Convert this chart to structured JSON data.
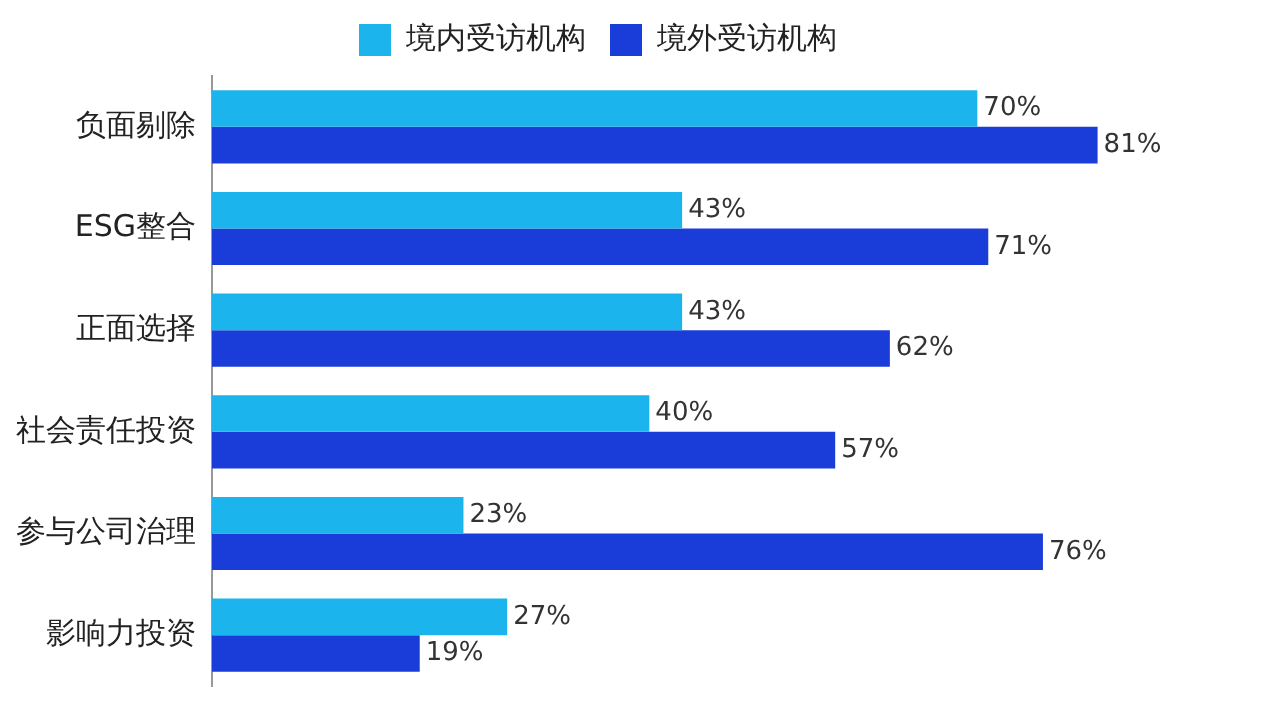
{
  "chart_data": {
    "type": "bar",
    "orientation": "horizontal",
    "legend": "top",
    "grid": false,
    "categories": [
      "负面剔除",
      "ESG整合",
      "正面选择",
      "社会责任投资",
      "参与公司治理",
      "影响力投资"
    ],
    "series": [
      {
        "name": "境内受访机构",
        "color": "#1cb4ec",
        "values": [
          70,
          43,
          43,
          40,
          23,
          27
        ],
        "value_labels": [
          "70%",
          "43%",
          "43%",
          "40%",
          "23%",
          "27%"
        ]
      },
      {
        "name": "境外受访机构",
        "color": "#1a3cd8",
        "values": [
          81,
          71,
          62,
          57,
          76,
          19
        ],
        "value_labels": [
          "81%",
          "71%",
          "62%",
          "57%",
          "76%",
          "19%"
        ]
      }
    ]
  }
}
